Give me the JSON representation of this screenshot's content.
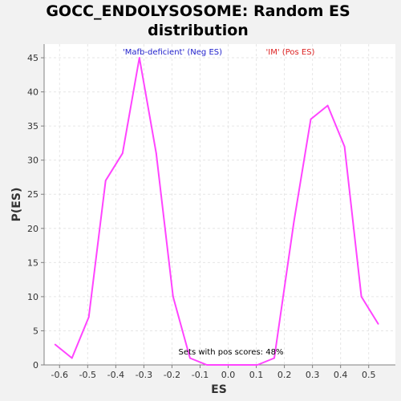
{
  "chart_data": {
    "type": "line",
    "title": [
      "GOCC_ENDOLYSOSOME: Random ES",
      "distribution"
    ],
    "xlabel": "ES",
    "ylabel": "P(ES)",
    "xlim": [
      -0.655,
      0.595
    ],
    "ylim": [
      0,
      47
    ],
    "xticks": [
      "-0.6",
      "-0.5",
      "-0.4",
      "-0.3",
      "-0.2",
      "-0.1",
      "0.0",
      "0.1",
      "0.2",
      "0.3",
      "0.4",
      "0.5"
    ],
    "yticks": [
      "0",
      "5",
      "10",
      "15",
      "20",
      "25",
      "30",
      "35",
      "40",
      "45"
    ],
    "grid": true,
    "neg_label": "'Mafb-deficient' (Neg ES)",
    "pos_label": "'IM' (Pos ES)",
    "annotation": "Sets with pos scores: 48%",
    "series": [
      {
        "color": "#ff44ff",
        "x": [
          -0.616,
          -0.556,
          -0.496,
          -0.436,
          -0.376,
          -0.316,
          -0.256,
          -0.196,
          -0.136,
          -0.076,
          -0.016,
          0.044,
          0.104,
          0.164,
          0.234,
          0.294,
          0.354,
          0.414,
          0.474,
          0.534
        ],
        "y": [
          3,
          1,
          7,
          27,
          31,
          45,
          31,
          10,
          1,
          0,
          0,
          0,
          0,
          1,
          21,
          36,
          38,
          32,
          10,
          6
        ]
      }
    ],
    "colors": {
      "neg_label": "#2222cc",
      "pos_label": "#dd2222",
      "axis": "#808080",
      "grid": "#e6e6e6",
      "plot_bg": "#ffffff",
      "page_bg": "#f2f2f2"
    }
  }
}
